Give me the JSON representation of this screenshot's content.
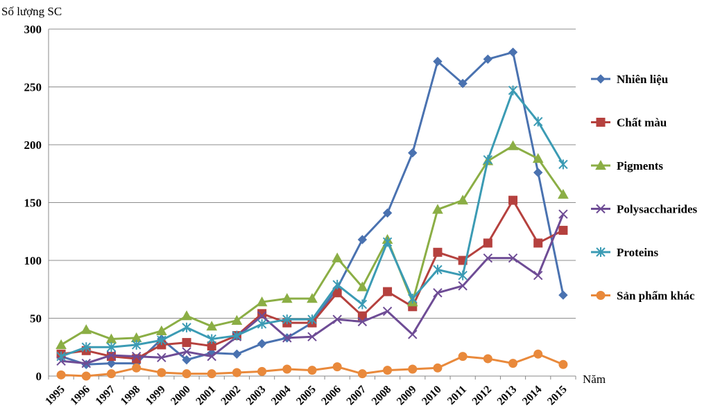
{
  "chart_data": {
    "type": "line",
    "title": "",
    "ylabel": "Số lượng SC",
    "xlabel": "Năm",
    "ylim": [
      0,
      300
    ],
    "yticks": [
      "0",
      "50",
      "100",
      "150",
      "200",
      "250",
      "300"
    ],
    "categories": [
      "1995",
      "1996",
      "1997",
      "1998",
      "1999",
      "2000",
      "2001",
      "2002",
      "2003",
      "2004",
      "2005",
      "2006",
      "2007",
      "2008",
      "2009",
      "2010",
      "2011",
      "2012",
      "2013",
      "2014",
      "2015"
    ],
    "grid": "horizontal",
    "legend_position": "right",
    "series": [
      {
        "name": "Nhiên liệu",
        "color": "#4a72b0",
        "marker": "diamond",
        "values": [
          17,
          10,
          11,
          11,
          32,
          14,
          20,
          19,
          28,
          33,
          46,
          76,
          118,
          141,
          193,
          272,
          253,
          274,
          280,
          176,
          70
        ]
      },
      {
        "name": "Chất màu",
        "color": "#b5413e",
        "marker": "square",
        "values": [
          19,
          22,
          17,
          15,
          27,
          29,
          26,
          35,
          54,
          46,
          46,
          72,
          52,
          73,
          60,
          107,
          100,
          115,
          152,
          115,
          126
        ]
      },
      {
        "name": "Pigments",
        "color": "#8bae45",
        "marker": "triangle",
        "values": [
          27,
          40,
          32,
          33,
          39,
          52,
          43,
          48,
          64,
          67,
          67,
          102,
          77,
          118,
          64,
          144,
          152,
          186,
          199,
          188,
          157
        ]
      },
      {
        "name": "Polysaccharides",
        "color": "#6e4c95",
        "marker": "x",
        "values": [
          13,
          11,
          18,
          17,
          16,
          21,
          17,
          34,
          52,
          33,
          34,
          49,
          47,
          56,
          36,
          72,
          78,
          102,
          102,
          87,
          140
        ]
      },
      {
        "name": "Proteins",
        "color": "#3b9bb4",
        "marker": "star",
        "values": [
          17,
          25,
          25,
          27,
          31,
          42,
          32,
          35,
          45,
          49,
          49,
          79,
          62,
          116,
          67,
          92,
          87,
          187,
          247,
          220,
          183
        ]
      },
      {
        "name": "Sản phẩm khác",
        "color": "#e9893b",
        "marker": "circle",
        "values": [
          1,
          0,
          2,
          7,
          3,
          2,
          2,
          3,
          4,
          6,
          5,
          8,
          2,
          5,
          6,
          7,
          17,
          15,
          11,
          19,
          10
        ]
      }
    ]
  }
}
